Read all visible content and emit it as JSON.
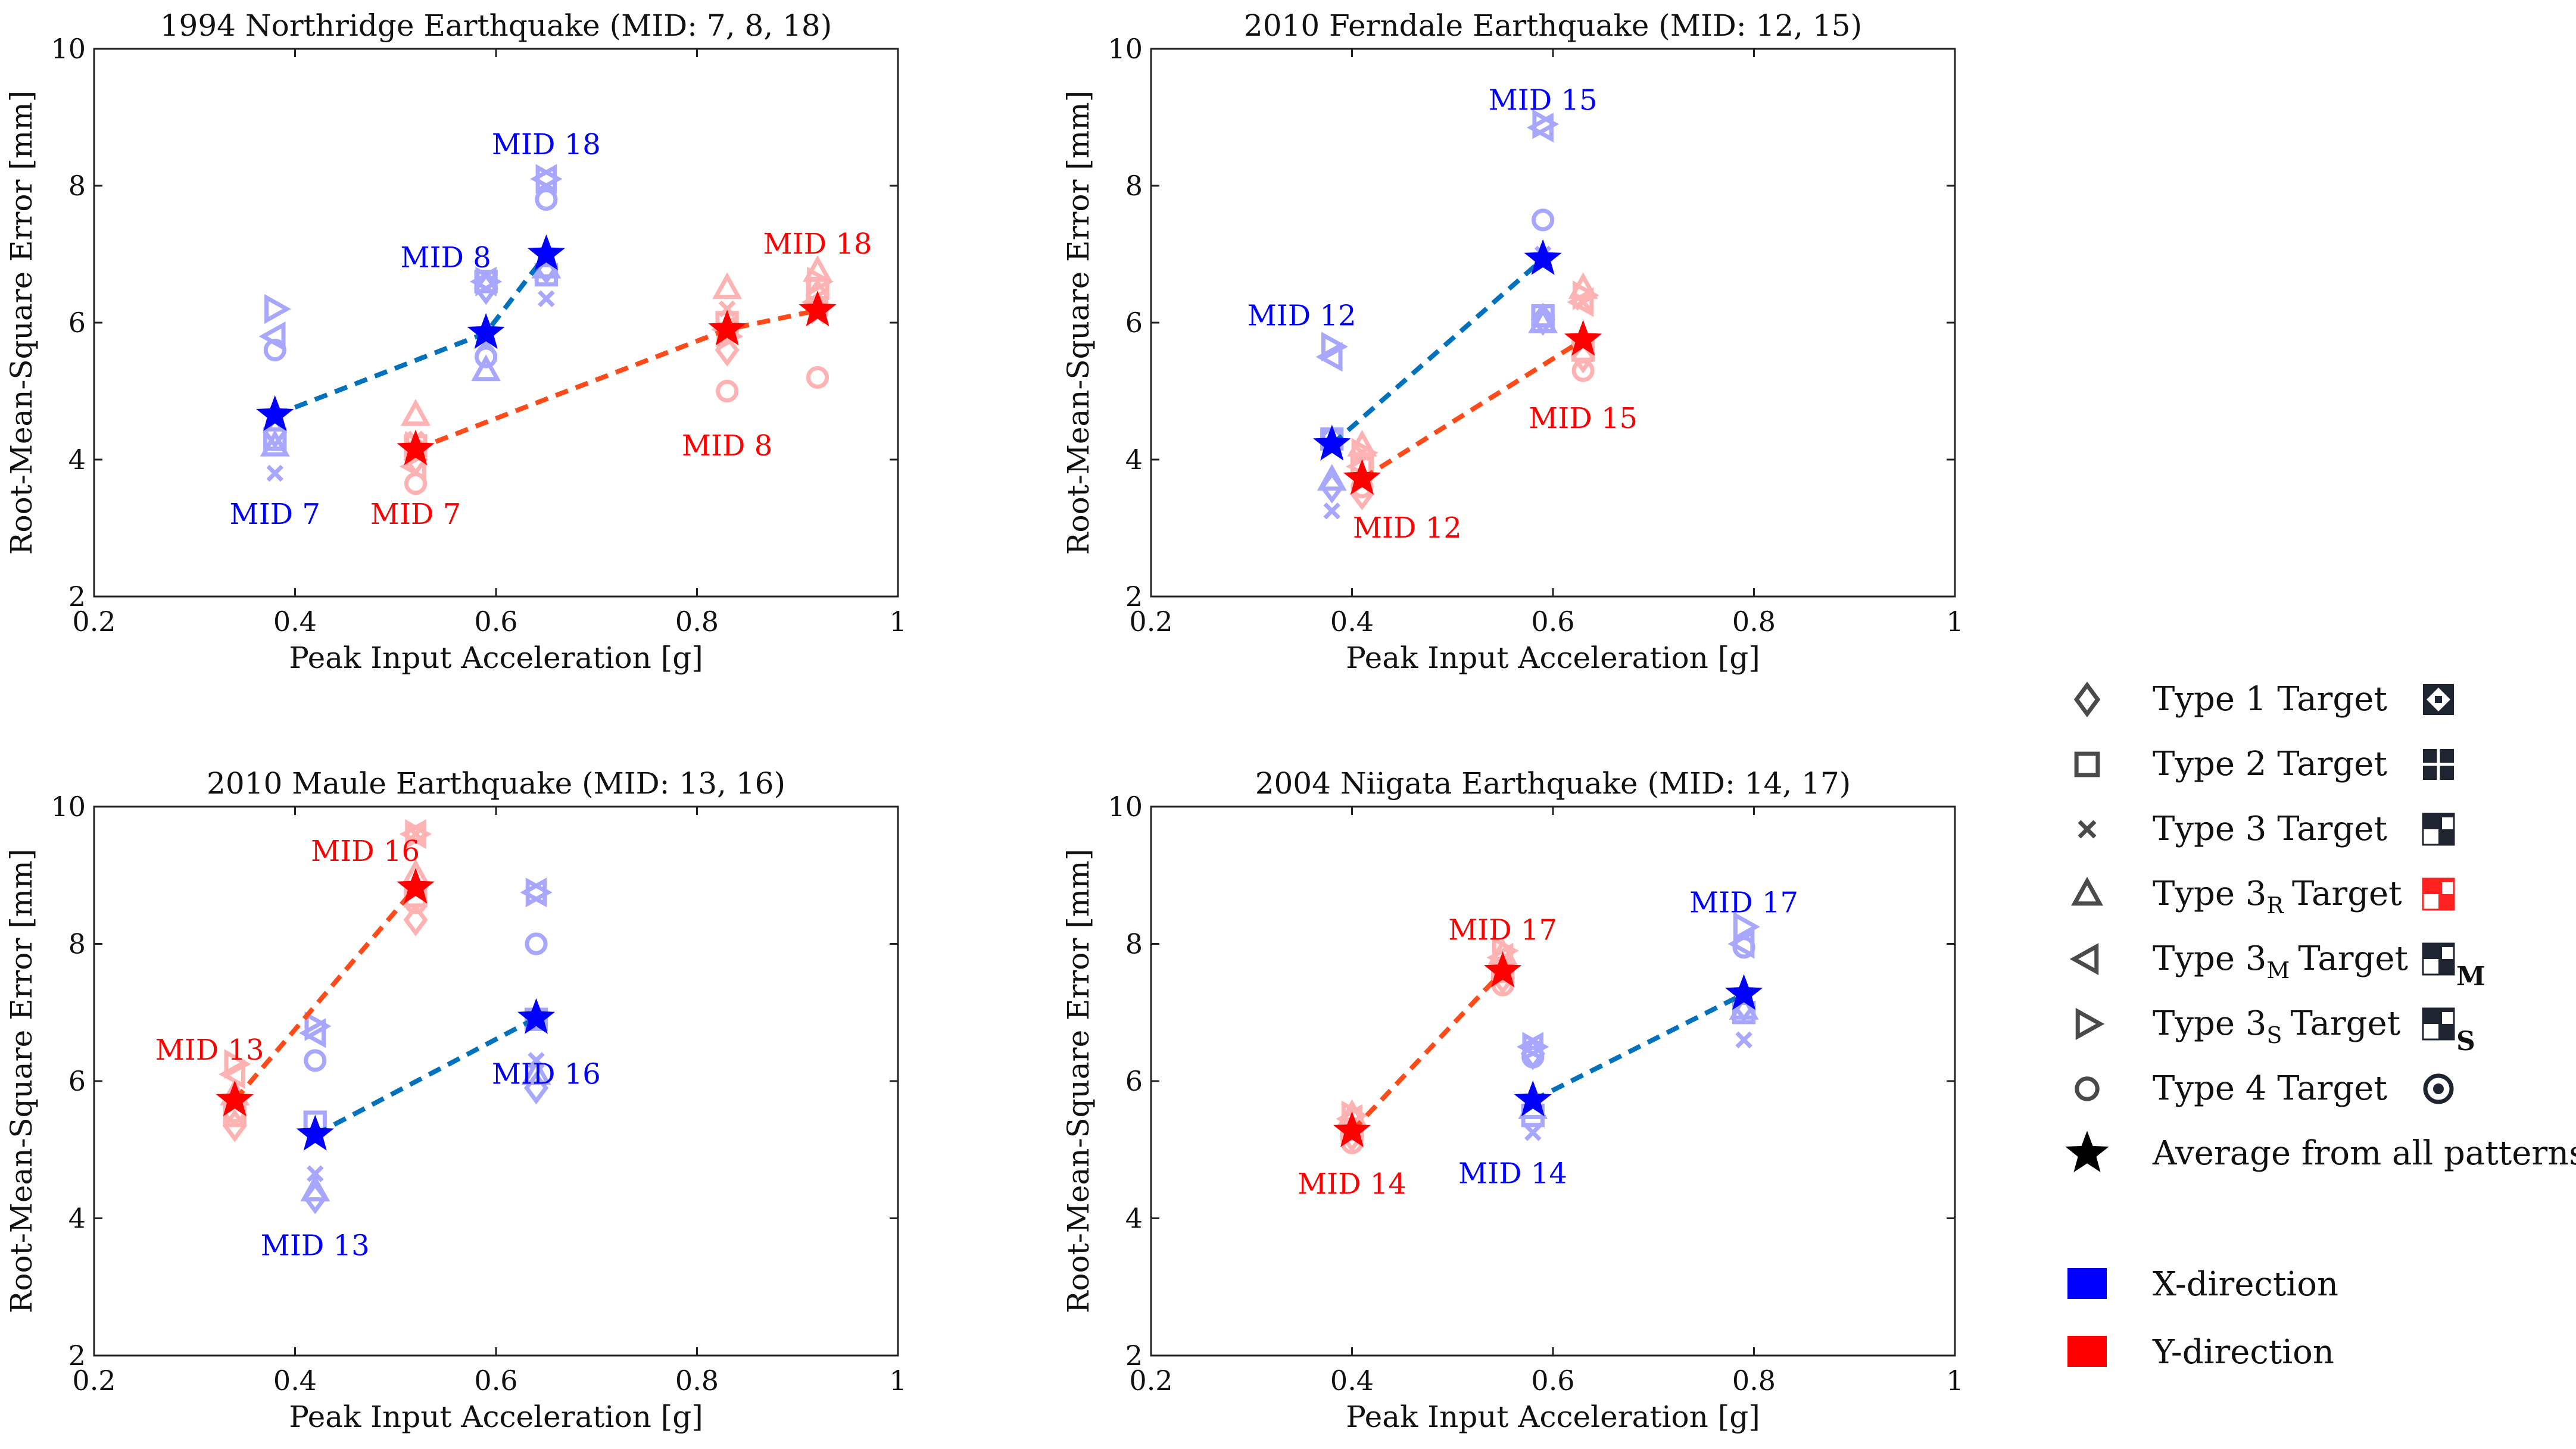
{
  "colors": {
    "x_direction": "#0000FF",
    "y_direction": "#FF0000",
    "x_light": "#A7A7FF",
    "y_light": "#FFB2B2",
    "x_line": "#0072BD",
    "y_line": "#FF4A1A",
    "black": "#000000"
  },
  "chart_data": [
    {
      "type": "scatter",
      "title": "1994 Northridge Earthquake (MID: 7, 8, 18)",
      "xlabel": "Peak Input Acceleration [g]",
      "ylabel": "Root-Mean-Square Error [mm]",
      "xlim": [
        0.2,
        1.0
      ],
      "ylim": [
        2,
        10
      ],
      "xticks": [
        "0.2",
        "0.4",
        "0.6",
        "0.8",
        "1"
      ],
      "yticks": [
        "2",
        "4",
        "6",
        "8",
        "10"
      ],
      "series": [
        {
          "name": "X-direction",
          "direction": "x",
          "x": [
            0.38,
            0.59,
            0.65
          ],
          "y": [
            4.65,
            5.85,
            7.0
          ]
        },
        {
          "name": "Y-direction",
          "direction": "y",
          "x": [
            0.52,
            0.83,
            0.92
          ],
          "y": [
            4.15,
            5.9,
            6.18
          ]
        }
      ],
      "markers": [
        {
          "dir": "x",
          "x": 0.38,
          "points": [
            [
              "diamond",
              4.4
            ],
            [
              "square",
              4.3
            ],
            [
              "x",
              3.8
            ],
            [
              "triangle",
              4.2
            ],
            [
              "triL",
              5.8
            ],
            [
              "triR",
              6.2
            ],
            [
              "circle",
              5.6
            ]
          ]
        },
        {
          "dir": "x",
          "x": 0.59,
          "points": [
            [
              "diamond",
              6.5
            ],
            [
              "square",
              6.6
            ],
            [
              "x",
              5.7
            ],
            [
              "triangle",
              5.3
            ],
            [
              "triL",
              6.6
            ],
            [
              "triR",
              6.6
            ],
            [
              "circle",
              5.5
            ]
          ]
        },
        {
          "dir": "x",
          "x": 0.65,
          "points": [
            [
              "diamond",
              6.8
            ],
            [
              "square",
              6.7
            ],
            [
              "x",
              6.35
            ],
            [
              "triangle",
              6.8
            ],
            [
              "triL",
              8.1
            ],
            [
              "triR",
              8.1
            ],
            [
              "circle",
              7.8
            ]
          ]
        },
        {
          "dir": "y",
          "x": 0.52,
          "points": [
            [
              "diamond",
              4.0
            ],
            [
              "square",
              4.2
            ],
            [
              "x",
              4.3
            ],
            [
              "triangle",
              4.65
            ],
            [
              "triL",
              3.9
            ],
            [
              "triR",
              4.2
            ],
            [
              "circle",
              3.65
            ]
          ]
        },
        {
          "dir": "y",
          "x": 0.83,
          "points": [
            [
              "diamond",
              5.6
            ],
            [
              "square",
              6.0
            ],
            [
              "x",
              6.2
            ],
            [
              "triangle",
              6.5
            ],
            [
              "triL",
              5.9
            ],
            [
              "triR",
              5.8
            ],
            [
              "circle",
              5.0
            ]
          ]
        },
        {
          "dir": "y",
          "x": 0.92,
          "points": [
            [
              "diamond",
              6.4
            ],
            [
              "square",
              6.5
            ],
            [
              "x",
              6.1
            ],
            [
              "triangle",
              6.75
            ],
            [
              "triL",
              6.3
            ],
            [
              "triR",
              6.6
            ],
            [
              "circle",
              5.2
            ]
          ]
        }
      ],
      "labels": [
        {
          "text": "MID 7",
          "dir": "x",
          "x": 0.38,
          "y": 3.2
        },
        {
          "text": "MID 8",
          "dir": "x",
          "x": 0.55,
          "y": 6.95
        },
        {
          "text": "MID 18",
          "dir": "x",
          "x": 0.65,
          "y": 8.6
        },
        {
          "text": "MID 7",
          "dir": "y",
          "x": 0.52,
          "y": 3.2
        },
        {
          "text": "MID 8",
          "dir": "y",
          "x": 0.83,
          "y": 4.2
        },
        {
          "text": "MID 18",
          "dir": "y",
          "x": 0.92,
          "y": 7.15
        }
      ]
    },
    {
      "type": "scatter",
      "title": "2010 Ferndale Earthquake (MID: 12, 15)",
      "xlabel": "Peak Input Acceleration [g]",
      "ylabel": "Root-Mean-Square Error [mm]",
      "xlim": [
        0.2,
        1.0
      ],
      "ylim": [
        2,
        10
      ],
      "xticks": [
        "0.2",
        "0.4",
        "0.6",
        "0.8",
        "1"
      ],
      "yticks": [
        "2",
        "4",
        "6",
        "8",
        "10"
      ],
      "series": [
        {
          "name": "X-direction",
          "direction": "x",
          "x": [
            0.38,
            0.59
          ],
          "y": [
            4.22,
            6.93
          ]
        },
        {
          "name": "Y-direction",
          "direction": "y",
          "x": [
            0.41,
            0.63
          ],
          "y": [
            3.72,
            5.75
          ]
        }
      ],
      "markers": [
        {
          "dir": "x",
          "x": 0.38,
          "points": [
            [
              "diamond",
              3.6
            ],
            [
              "square",
              4.3
            ],
            [
              "x",
              3.25
            ],
            [
              "triangle",
              3.7
            ],
            [
              "triL",
              5.5
            ],
            [
              "triR",
              5.65
            ],
            [
              "circle",
              4.3
            ]
          ]
        },
        {
          "dir": "x",
          "x": 0.59,
          "points": [
            [
              "diamond",
              6.05
            ],
            [
              "square",
              6.1
            ],
            [
              "x",
              7.0
            ],
            [
              "triangle",
              6.0
            ],
            [
              "triL",
              8.85
            ],
            [
              "triR",
              8.9
            ],
            [
              "circle",
              7.5
            ]
          ]
        },
        {
          "dir": "y",
          "x": 0.41,
          "points": [
            [
              "diamond",
              3.5
            ],
            [
              "square",
              3.9
            ],
            [
              "x",
              4.1
            ],
            [
              "triangle",
              4.2
            ],
            [
              "triL",
              3.9
            ],
            [
              "triR",
              4.1
            ],
            [
              "circle",
              3.6
            ]
          ]
        },
        {
          "dir": "y",
          "x": 0.63,
          "points": [
            [
              "diamond",
              5.5
            ],
            [
              "square",
              5.6
            ],
            [
              "x",
              6.3
            ],
            [
              "triangle",
              6.5
            ],
            [
              "triL",
              6.3
            ],
            [
              "triR",
              6.4
            ],
            [
              "circle",
              5.3
            ]
          ]
        }
      ],
      "labels": [
        {
          "text": "MID 12",
          "dir": "x",
          "x": 0.35,
          "y": 6.1
        },
        {
          "text": "MID 15",
          "dir": "x",
          "x": 0.59,
          "y": 9.25
        },
        {
          "text": "MID 12",
          "dir": "y",
          "x": 0.455,
          "y": 3.0
        },
        {
          "text": "MID 15",
          "dir": "y",
          "x": 0.63,
          "y": 4.6
        }
      ]
    },
    {
      "type": "scatter",
      "title": "2010 Maule Earthquake (MID: 13, 16)",
      "xlabel": "Peak Input Acceleration [g]",
      "ylabel": "Root-Mean-Square Error [mm]",
      "xlim": [
        0.2,
        1.0
      ],
      "ylim": [
        2,
        10
      ],
      "xticks": [
        "0.2",
        "0.4",
        "0.6",
        "0.8",
        "1"
      ],
      "yticks": [
        "2",
        "4",
        "6",
        "8",
        "10"
      ],
      "series": [
        {
          "name": "X-direction",
          "direction": "x",
          "x": [
            0.42,
            0.64
          ],
          "y": [
            5.22,
            6.92
          ]
        },
        {
          "name": "Y-direction",
          "direction": "y",
          "x": [
            0.34,
            0.52
          ],
          "y": [
            5.72,
            8.82
          ]
        }
      ],
      "markers": [
        {
          "dir": "x",
          "x": 0.42,
          "points": [
            [
              "diamond",
              4.3
            ],
            [
              "square",
              5.4
            ],
            [
              "x",
              4.65
            ],
            [
              "triangle",
              4.4
            ],
            [
              "triL",
              6.7
            ],
            [
              "triR",
              6.8
            ],
            [
              "circle",
              6.3
            ]
          ]
        },
        {
          "dir": "x",
          "x": 0.64,
          "points": [
            [
              "diamond",
              5.9
            ],
            [
              "square",
              6.9
            ],
            [
              "x",
              6.3
            ],
            [
              "triangle",
              6.1
            ],
            [
              "triL",
              8.75
            ],
            [
              "triR",
              8.75
            ],
            [
              "circle",
              8.0
            ]
          ]
        },
        {
          "dir": "y",
          "x": 0.34,
          "points": [
            [
              "diamond",
              5.35
            ],
            [
              "square",
              5.5
            ],
            [
              "x",
              5.7
            ],
            [
              "triangle",
              5.8
            ],
            [
              "triL",
              6.1
            ],
            [
              "triR",
              6.25
            ],
            [
              "circle",
              5.55
            ]
          ]
        },
        {
          "dir": "y",
          "x": 0.52,
          "points": [
            [
              "diamond",
              8.35
            ],
            [
              "square",
              8.7
            ],
            [
              "x",
              9.6
            ],
            [
              "triangle",
              9.0
            ],
            [
              "triL",
              9.6
            ],
            [
              "triR",
              9.6
            ],
            [
              "circle",
              8.6
            ]
          ]
        }
      ],
      "labels": [
        {
          "text": "MID 13",
          "dir": "x",
          "x": 0.42,
          "y": 3.6
        },
        {
          "text": "MID 16",
          "dir": "x",
          "x": 0.65,
          "y": 6.1
        },
        {
          "text": "MID 13",
          "dir": "y",
          "x": 0.315,
          "y": 6.45
        },
        {
          "text": "MID 16",
          "dir": "y",
          "x": 0.47,
          "y": 9.35
        }
      ]
    },
    {
      "type": "scatter",
      "title": "2004 Niigata Earthquake (MID: 14, 17)",
      "xlabel": "Peak Input Acceleration [g]",
      "ylabel": "Root-Mean-Square Error [mm]",
      "xlim": [
        0.2,
        1.0
      ],
      "ylim": [
        2,
        10
      ],
      "xticks": [
        "0.2",
        "0.4",
        "0.6",
        "0.8",
        "1"
      ],
      "yticks": [
        "2",
        "4",
        "6",
        "8",
        "10"
      ],
      "series": [
        {
          "name": "X-direction",
          "direction": "x",
          "x": [
            0.58,
            0.79
          ],
          "y": [
            5.72,
            7.27
          ]
        },
        {
          "name": "Y-direction",
          "direction": "y",
          "x": [
            0.4,
            0.55
          ],
          "y": [
            5.27,
            7.6
          ]
        }
      ],
      "markers": [
        {
          "dir": "x",
          "x": 0.58,
          "points": [
            [
              "diamond",
              6.4
            ],
            [
              "square",
              5.5
            ],
            [
              "x",
              5.25
            ],
            [
              "triangle",
              5.6
            ],
            [
              "triL",
              6.5
            ],
            [
              "triR",
              6.5
            ],
            [
              "circle",
              6.35
            ]
          ]
        },
        {
          "dir": "x",
          "x": 0.79,
          "points": [
            [
              "diamond",
              7.1
            ],
            [
              "square",
              7.0
            ],
            [
              "x",
              6.6
            ],
            [
              "triangle",
              7.05
            ],
            [
              "triL",
              8.0
            ],
            [
              "triR",
              8.25
            ],
            [
              "circle",
              7.95
            ]
          ]
        },
        {
          "dir": "y",
          "x": 0.4,
          "points": [
            [
              "diamond",
              5.2
            ],
            [
              "square",
              5.3
            ],
            [
              "x",
              5.35
            ],
            [
              "triangle",
              5.5
            ],
            [
              "triL",
              5.45
            ],
            [
              "triR",
              5.5
            ],
            [
              "circle",
              5.1
            ]
          ]
        },
        {
          "dir": "y",
          "x": 0.55,
          "points": [
            [
              "diamond",
              7.5
            ],
            [
              "square",
              7.6
            ],
            [
              "x",
              7.7
            ],
            [
              "triangle",
              7.85
            ],
            [
              "triL",
              7.8
            ],
            [
              "triR",
              7.9
            ],
            [
              "circle",
              7.4
            ]
          ]
        }
      ],
      "labels": [
        {
          "text": "MID 14",
          "dir": "x",
          "x": 0.56,
          "y": 4.65
        },
        {
          "text": "MID 17",
          "dir": "x",
          "x": 0.79,
          "y": 8.6
        },
        {
          "text": "MID 14",
          "dir": "y",
          "x": 0.4,
          "y": 4.5
        },
        {
          "text": "MID 17",
          "dir": "y",
          "x": 0.55,
          "y": 8.2
        }
      ]
    }
  ],
  "legend": {
    "items": [
      {
        "marker": "diamond",
        "label": "Type 1 Target",
        "pattern": "type1"
      },
      {
        "marker": "square",
        "label": "Type 2 Target",
        "pattern": "type2"
      },
      {
        "marker": "x",
        "label": "Type 3 Target",
        "pattern": "type3"
      },
      {
        "marker": "triangle",
        "label": "Type 3",
        "subscript": "R",
        "suffix": "Target",
        "pattern": "type3R"
      },
      {
        "marker": "triL",
        "label": "Type 3",
        "subscript": "M",
        "suffix": "Target",
        "pattern": "type3M",
        "pattern_letter": "M"
      },
      {
        "marker": "triR",
        "label": "Type 3",
        "subscript": "S",
        "suffix": "Target",
        "pattern": "type3S",
        "pattern_letter": "S"
      },
      {
        "marker": "circle",
        "label": "Type 4 Target",
        "pattern": "type4"
      },
      {
        "marker": "star",
        "label": "Average from all patterns"
      }
    ],
    "directions": [
      {
        "label": "X-direction",
        "color": "#0000FF"
      },
      {
        "label": "Y-direction",
        "color": "#FF0000"
      }
    ]
  }
}
